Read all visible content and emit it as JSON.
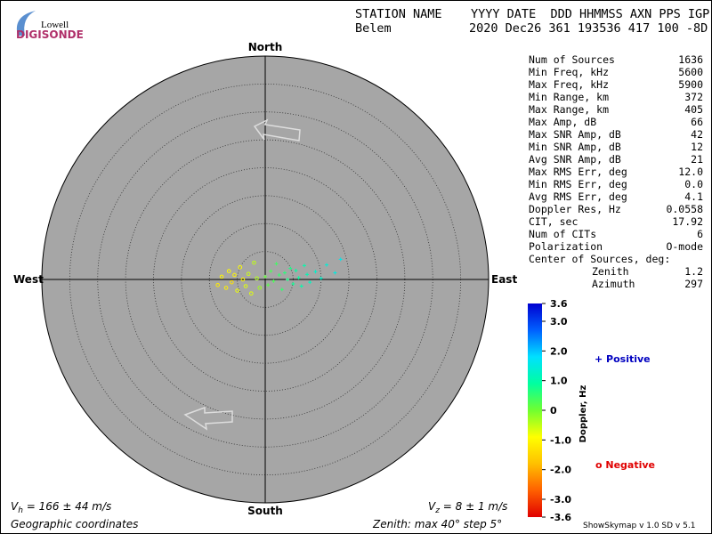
{
  "logo": {
    "top": "Lowell",
    "bottom": "DIGISONDE"
  },
  "header": {
    "labels": "STATION NAME    YYYY DATE  DDD HHMMSS AXN PPS IGP",
    "station": "Belem",
    "values": "2020 Dec26 361 193536 417 100 -8D"
  },
  "compass": {
    "north": "North",
    "south": "South",
    "east": "East",
    "west": "West"
  },
  "stats": [
    [
      "Num of Sources",
      "1636"
    ],
    [
      "Min Freq, kHz",
      "5600"
    ],
    [
      "Max Freq, kHz",
      "5900"
    ],
    [
      "Min Range, km",
      "372"
    ],
    [
      "Max Range, km",
      "405"
    ],
    [
      "Max Amp, dB",
      "66"
    ],
    [
      "Max SNR Amp, dB",
      "42"
    ],
    [
      "Min SNR Amp, dB",
      "12"
    ],
    [
      "Avg SNR Amp, dB",
      "21"
    ],
    [
      "Max RMS Err, deg",
      "12.0"
    ],
    [
      "Min RMS Err, deg",
      "0.0"
    ],
    [
      "Avg RMS Err, deg",
      "4.1"
    ],
    [
      "Doppler Res, Hz",
      "0.0558"
    ],
    [
      "CIT, sec",
      "17.92"
    ],
    [
      "Num of CITs",
      "6"
    ],
    [
      "Polarization",
      "O-mode"
    ]
  ],
  "center": {
    "title": "Center of Sources, deg:",
    "rows": [
      [
        "Zenith",
        "1.2"
      ],
      [
        "Azimuth",
        "297"
      ]
    ]
  },
  "colorbar": {
    "title": "Doppler, Hz",
    "min": -3.6,
    "max": 3.6,
    "colors": [
      "#e00000",
      "#ff6000",
      "#ffc000",
      "#ffff00",
      "#70ff30",
      "#00ffa0",
      "#00e0ff",
      "#0060ff",
      "#0000d0"
    ],
    "ticks": [
      {
        "value": 3.6,
        "label": "3.6"
      },
      {
        "value": 3,
        "label": "3.0"
      },
      {
        "value": 2,
        "label": "2.0"
      },
      {
        "value": 1,
        "label": "1.0"
      },
      0,
      {
        "value": -1,
        "label": "-1.0"
      },
      {
        "value": -2,
        "label": "-2.0"
      },
      {
        "value": -3,
        "label": "-3.0"
      },
      {
        "value": -3.6,
        "label": "-3.6"
      }
    ]
  },
  "legend": {
    "positive": "+ Positive",
    "negative": "o Negative"
  },
  "velocity": {
    "vh": [
      "V",
      "h",
      " = 166 ± 44 m/s"
    ],
    "vz": [
      "V",
      "z",
      " = 8 ± 1 m/s"
    ]
  },
  "footer": {
    "coords": "Geographic coordinates",
    "zenith_prefix": "Zenith: max ",
    "zenith_max": 40,
    "zenith_mid": "°  step ",
    "zenith_step": 5,
    "zenith_suffix": "°",
    "version": "ShowSkymap v 1.0   SD v 5.1"
  },
  "sources": [
    [
      -8.5,
      -1,
      -1.2
    ],
    [
      -7.8,
      0.5,
      -1.0
    ],
    [
      -7,
      -1.5,
      -1.1
    ],
    [
      -6.5,
      1.5,
      -0.9
    ],
    [
      -6,
      -0.5,
      -1.3
    ],
    [
      -5.5,
      0.8,
      -1.0
    ],
    [
      -5,
      -2,
      -0.8
    ],
    [
      -4.5,
      2.2,
      -0.9
    ],
    [
      -4,
      0,
      -1.0
    ],
    [
      -3.5,
      -1.2,
      -0.7
    ],
    [
      -3,
      1,
      -0.6
    ],
    [
      -2.5,
      -2.5,
      -0.7
    ],
    [
      -2,
      3,
      -0.5
    ],
    [
      -1.5,
      0.2,
      -0.4
    ],
    [
      -1,
      -1.5,
      -0.3
    ],
    [
      0,
      0.5,
      0.1
    ],
    [
      0.5,
      -1,
      0.2
    ],
    [
      1,
      1.5,
      0.3
    ],
    [
      1.5,
      -0.3,
      0.3
    ],
    [
      2,
      2.8,
      0.4
    ],
    [
      2.5,
      0.8,
      0.5
    ],
    [
      3,
      -1.8,
      0.5
    ],
    [
      3.5,
      1.2,
      0.6
    ],
    [
      4,
      0,
      0.7
    ],
    [
      4.5,
      2,
      0.7
    ],
    [
      5,
      -0.8,
      0.8
    ],
    [
      5.5,
      1.6,
      0.9
    ],
    [
      6,
      0.3,
      0.9
    ],
    [
      6.5,
      -1.2,
      1.0
    ],
    [
      7,
      2.5,
      1.0
    ],
    [
      7.5,
      0.9,
      1.1
    ],
    [
      8,
      -0.5,
      1.2
    ],
    [
      9,
      1.4,
      1.3
    ],
    [
      10,
      0.2,
      1.3
    ],
    [
      11,
      2.6,
      1.4
    ],
    [
      12.5,
      1.2,
      1.5
    ],
    [
      13.5,
      3.6,
      1.6
    ]
  ]
}
